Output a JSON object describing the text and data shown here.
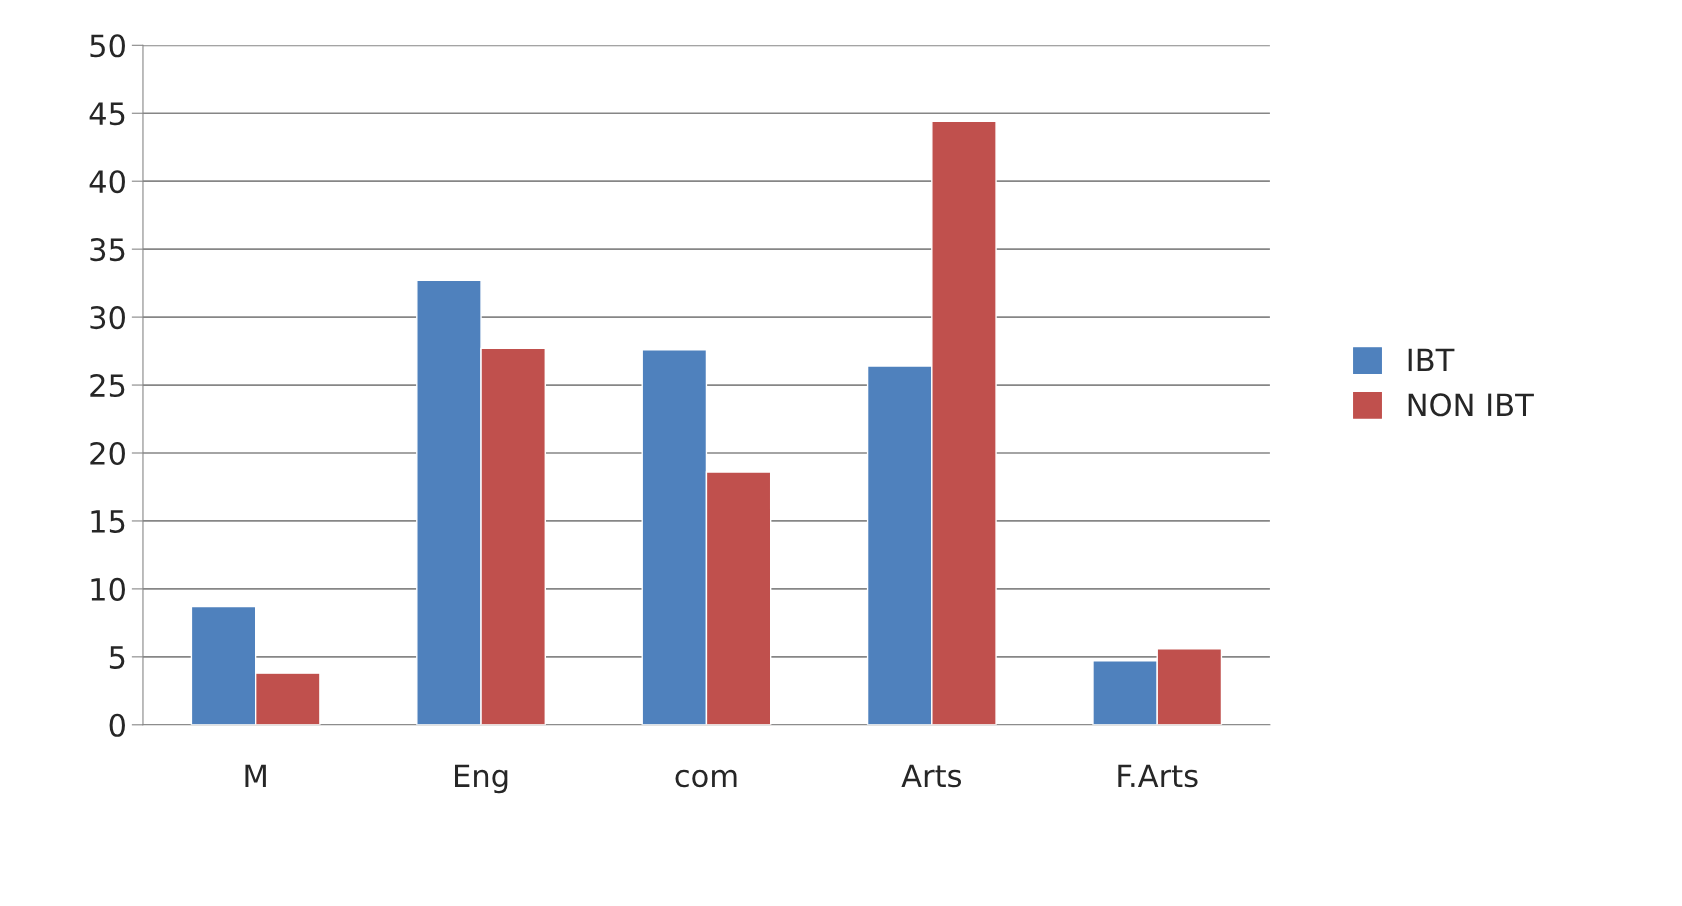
{
  "chart_data": {
    "type": "bar",
    "categories": [
      "M",
      "Eng",
      "com",
      "Arts",
      "F.Arts"
    ],
    "series": [
      {
        "name": "IBT",
        "color": "#4f81bd",
        "values": [
          8.7,
          32.7,
          27.6,
          26.4,
          4.7
        ]
      },
      {
        "name": "NON IBT",
        "color": "#c0504d",
        "values": [
          3.8,
          27.7,
          18.6,
          44.4,
          5.6
        ]
      }
    ],
    "ylim": [
      0,
      50
    ],
    "yticks": [
      0,
      5,
      10,
      15,
      20,
      25,
      30,
      35,
      40,
      45,
      50
    ],
    "grid": "y",
    "legend": "right"
  }
}
